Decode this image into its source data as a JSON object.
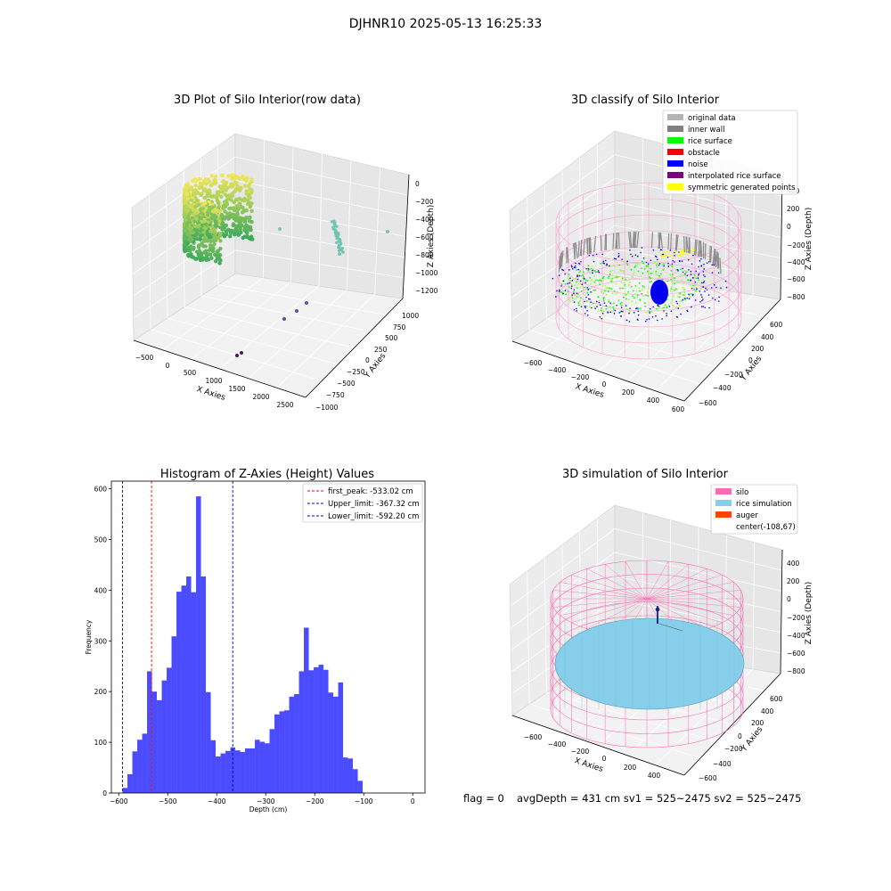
{
  "suptitle": "DJHNR10 2025-05-13 16:25:33",
  "footer": {
    "flag": "flag = 0",
    "stats": "avgDepth = 431 cm  sv1 = 525~2475  sv2 = 525~2475"
  },
  "colors": {
    "histogram": "#4b4bff",
    "first_peak": "#ff0000",
    "limits": "#0000cc",
    "silo": "#ff69b4",
    "rice_simulation": "#87ceeb",
    "auger": "#ff4500"
  },
  "panels": {
    "raw": {
      "title": "3D Plot of Silo Interior(row data)",
      "xlabel": "X Axies",
      "ylabel": "Y Axies",
      "zlabel": "Z Axies (Depth)",
      "xticks": [
        "−500",
        "0",
        "500",
        "1000",
        "1500",
        "2000",
        "2500"
      ],
      "yticks": [
        "1000",
        "750",
        "500",
        "250",
        "0",
        "−250",
        "−500",
        "−750",
        "−1000"
      ],
      "zticks": [
        "0",
        "−200",
        "−400",
        "−600",
        "−800",
        "−1000",
        "−1200"
      ]
    },
    "classify": {
      "title": "3D classify of Silo Interior",
      "xlabel": "X Axies",
      "ylabel": "Y Axies",
      "zlabel": "Z Axies (Depth)",
      "xticks": [
        "−600",
        "−400",
        "−200",
        "0",
        "200",
        "400",
        "600"
      ],
      "yticks": [
        "600",
        "400",
        "200",
        "0",
        "−200",
        "−400",
        "−600"
      ],
      "zticks": [
        "400",
        "200",
        "0",
        "−200",
        "−400",
        "−600",
        "−800"
      ],
      "legend": [
        {
          "label": "original data",
          "color": "#b4b4b4"
        },
        {
          "label": "inner wall",
          "color": "#808080"
        },
        {
          "label": "rice surface",
          "color": "#00ff00"
        },
        {
          "label": "obstacle",
          "color": "#ff0000"
        },
        {
          "label": "noise",
          "color": "#0000ff"
        },
        {
          "label": "interpolated rice surface",
          "color": "#800080"
        },
        {
          "label": "symmetric generated points",
          "color": "#ffff00"
        }
      ]
    },
    "simulation": {
      "title": "3D simulation of Silo Interior",
      "xlabel": "X Axies",
      "ylabel": "Y Axies",
      "zlabel": "Z Axies (Depth)",
      "xticks": [
        "−600",
        "−400",
        "−200",
        "0",
        "200",
        "400"
      ],
      "yticks": [
        "600",
        "400",
        "200",
        "0",
        "−200",
        "−400",
        "−600"
      ],
      "zticks": [
        "400",
        "200",
        "0",
        "−200",
        "−400",
        "−600",
        "−800"
      ],
      "legend": [
        {
          "label": "silo",
          "color": "#ff69b4"
        },
        {
          "label": "rice simulation",
          "color": "#87ceeb"
        },
        {
          "label": "auger",
          "color": "#ff4500"
        },
        {
          "label": "center(-108,67)",
          "color": ""
        }
      ]
    }
  },
  "chart_data": {
    "type": "bar",
    "title": "Histogram of Z-Axies (Height) Values",
    "xlabel": "Depth (cm)",
    "ylabel": "Frequency",
    "xlim": [
      -615,
      25
    ],
    "ylim": [
      0,
      615
    ],
    "xticks": [
      -600,
      -500,
      -400,
      -300,
      -200,
      -100,
      0
    ],
    "yticks": [
      0,
      100,
      200,
      300,
      400,
      500,
      600
    ],
    "bin_start": -592.2,
    "bin_width": 10.0,
    "values": [
      10,
      37,
      82,
      105,
      117,
      240,
      200,
      183,
      222,
      247,
      309,
      397,
      409,
      427,
      396,
      585,
      427,
      199,
      104,
      72,
      78,
      83,
      90,
      84,
      81,
      88,
      88,
      105,
      101,
      98,
      126,
      155,
      161,
      163,
      190,
      195,
      240,
      326,
      242,
      248,
      253,
      243,
      198,
      190,
      218,
      70,
      68,
      47,
      24
    ],
    "lines": [
      {
        "name": "first_peak",
        "x": -533.02,
        "color": "#ff0000"
      },
      {
        "name": "Upper_limit",
        "x": -367.32,
        "color": "#0000cc"
      },
      {
        "name": "Lower_limit",
        "x": -592.2,
        "color": "#0000cc"
      }
    ],
    "legend": [
      "first_peak: -533.02 cm",
      "Upper_limit: -367.32 cm",
      "Lower_limit: -592.20 cm"
    ],
    "legend_position": "top-right"
  }
}
